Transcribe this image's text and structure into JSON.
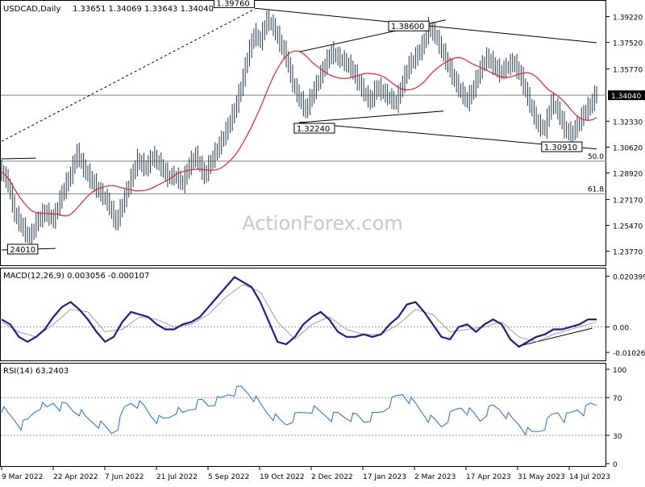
{
  "chart_data": {
    "type": "line",
    "symbol": "USDCAD,Daily",
    "ohlc_header": "1.33651 1.34069 1.33643 1.34040",
    "watermark": "ActionForex.com",
    "x_tick_labels": [
      "9 Mar 2022",
      "22 Apr 2022",
      "7 Jun 2022",
      "21 Jul 2022",
      "5 Sep 2022",
      "19 Oct 2022",
      "2 Dec 2022",
      "17 Jan 2023",
      "2 Mar 2023",
      "17 Apr 2023",
      "31 May 2023",
      "14 Jul 2023"
    ],
    "price_panel": {
      "ylim": [
        1.23,
        1.401
      ],
      "y_tick_labels": [
        {
          "v": 1.3922,
          "t": "1.39220"
        },
        {
          "v": 1.3752,
          "t": "1.37520"
        },
        {
          "v": 1.3577,
          "t": "1.35770"
        },
        {
          "v": 1.3233,
          "t": "1.32330"
        },
        {
          "v": 1.3062,
          "t": "1.30620"
        },
        {
          "v": 1.2892,
          "t": "1.28920"
        },
        {
          "v": 1.2717,
          "t": "1.27170"
        },
        {
          "v": 1.2547,
          "t": "1.25470"
        },
        {
          "v": 1.2377,
          "t": "1.23770"
        }
      ],
      "current_price_label": "1.34040",
      "current_price": 1.3404,
      "price_points": [
        [
          0,
          1.29
        ],
        [
          3,
          1.282
        ],
        [
          6,
          1.262
        ],
        [
          10,
          1.252
        ],
        [
          13,
          1.245
        ],
        [
          16,
          1.256
        ],
        [
          20,
          1.263
        ],
        [
          24,
          1.258
        ],
        [
          28,
          1.275
        ],
        [
          32,
          1.288
        ],
        [
          35,
          1.302
        ],
        [
          38,
          1.292
        ],
        [
          42,
          1.283
        ],
        [
          45,
          1.277
        ],
        [
          49,
          1.27
        ],
        [
          53,
          1.256
        ],
        [
          56,
          1.268
        ],
        [
          60,
          1.285
        ],
        [
          63,
          1.297
        ],
        [
          67,
          1.292
        ],
        [
          70,
          1.3
        ],
        [
          74,
          1.293
        ],
        [
          77,
          1.286
        ],
        [
          80,
          1.287
        ],
        [
          84,
          1.282
        ],
        [
          87,
          1.294
        ],
        [
          90,
          1.3
        ],
        [
          94,
          1.287
        ],
        [
          97,
          1.296
        ],
        [
          101,
          1.307
        ],
        [
          104,
          1.316
        ],
        [
          108,
          1.33
        ],
        [
          111,
          1.345
        ],
        [
          114,
          1.365
        ],
        [
          117,
          1.38
        ],
        [
          120,
          1.376
        ],
        [
          123,
          1.39
        ],
        [
          126,
          1.385
        ],
        [
          129,
          1.375
        ],
        [
          132,
          1.365
        ],
        [
          135,
          1.348
        ],
        [
          138,
          1.338
        ],
        [
          141,
          1.33
        ],
        [
          144,
          1.34
        ],
        [
          147,
          1.35
        ],
        [
          150,
          1.36
        ],
        [
          153,
          1.368
        ],
        [
          156,
          1.365
        ],
        [
          159,
          1.362
        ],
        [
          162,
          1.358
        ],
        [
          165,
          1.35
        ],
        [
          168,
          1.342
        ],
        [
          171,
          1.336
        ],
        [
          174,
          1.345
        ],
        [
          177,
          1.342
        ],
        [
          180,
          1.338
        ],
        [
          183,
          1.335
        ],
        [
          186,
          1.348
        ],
        [
          189,
          1.36
        ],
        [
          192,
          1.365
        ],
        [
          195,
          1.372
        ],
        [
          198,
          1.384
        ],
        [
          201,
          1.38
        ],
        [
          204,
          1.37
        ],
        [
          207,
          1.36
        ],
        [
          210,
          1.35
        ],
        [
          213,
          1.342
        ],
        [
          216,
          1.336
        ],
        [
          219,
          1.345
        ],
        [
          222,
          1.357
        ],
        [
          225,
          1.365
        ],
        [
          228,
          1.36
        ],
        [
          231,
          1.355
        ],
        [
          234,
          1.358
        ],
        [
          237,
          1.362
        ],
        [
          240,
          1.355
        ],
        [
          243,
          1.343
        ],
        [
          246,
          1.33
        ],
        [
          249,
          1.32
        ],
        [
          252,
          1.318
        ],
        [
          255,
          1.335
        ],
        [
          258,
          1.33
        ],
        [
          261,
          1.318
        ],
        [
          264,
          1.314
        ],
        [
          267,
          1.32
        ],
        [
          270,
          1.328
        ],
        [
          273,
          1.333
        ],
        [
          276,
          1.342
        ]
      ],
      "sma_label": "",
      "trendlines": [
        {
          "x1": 0,
          "y1": 1.31,
          "x2": 118,
          "y2": 1.3976,
          "style": "dashed"
        },
        {
          "x1": 118,
          "y1": 1.3976,
          "x2": 276,
          "y2": 1.375,
          "style": "solid"
        },
        {
          "x1": 138,
          "y1": 1.3224,
          "x2": 276,
          "y2": 1.305,
          "style": "solid"
        },
        {
          "x1": 138,
          "y1": 1.3224,
          "x2": 205,
          "y2": 1.33,
          "style": "solid"
        },
        {
          "x1": 138,
          "y1": 1.369,
          "x2": 206,
          "y2": 1.39,
          "style": "solid"
        },
        {
          "x1": 0,
          "y1": 1.2985,
          "x2": 16,
          "y2": 1.299,
          "style": "solid"
        },
        {
          "x1": 0,
          "y1": 1.2385,
          "x2": 25,
          "y2": 1.2395,
          "style": "solid"
        }
      ],
      "levels": [
        {
          "v": 1.3404,
          "label": ""
        },
        {
          "v": 1.297,
          "label": "50.0"
        },
        {
          "v": 1.2755,
          "label": "61.8"
        }
      ],
      "annotations": [
        {
          "text": "1.39760",
          "x": 118,
          "v": 1.3976
        },
        {
          "text": "1.38600",
          "x": 196,
          "v": 1.386
        },
        {
          "text": "1.32240",
          "x": 138,
          "v": 1.3224
        },
        {
          "text": "1.30910",
          "x": 252,
          "v": 1.3091
        },
        {
          "text": "24010",
          "x": 5,
          "v": 1.2401
        }
      ]
    },
    "macd_panel": {
      "title": "MACD(12,26,9) 0.003056 -0.000107",
      "ylim": [
        -0.0125,
        0.0225
      ],
      "y_tick_labels": [
        {
          "v": 0.020399,
          "t": "0.020399"
        },
        {
          "v": 0.0,
          "t": "0.00"
        },
        {
          "v": -0.01026,
          "t": "-0.01026"
        }
      ],
      "current_label": "0.00",
      "macd_points": [
        [
          0,
          0.003
        ],
        [
          4,
          0.001
        ],
        [
          8,
          -0.004
        ],
        [
          12,
          -0.006
        ],
        [
          16,
          -0.004
        ],
        [
          20,
          -0.001
        ],
        [
          24,
          0.004
        ],
        [
          28,
          0.008
        ],
        [
          32,
          0.01
        ],
        [
          36,
          0.007
        ],
        [
          40,
          0.003
        ],
        [
          44,
          -0.002
        ],
        [
          48,
          -0.006
        ],
        [
          52,
          -0.004
        ],
        [
          56,
          0.002
        ],
        [
          60,
          0.006
        ],
        [
          64,
          0.005
        ],
        [
          68,
          0.004
        ],
        [
          72,
          0.001
        ],
        [
          76,
          -0.001
        ],
        [
          80,
          -0.001
        ],
        [
          84,
          0.001
        ],
        [
          88,
          0.002
        ],
        [
          92,
          0.004
        ],
        [
          96,
          0.008
        ],
        [
          100,
          0.012
        ],
        [
          104,
          0.016
        ],
        [
          108,
          0.02
        ],
        [
          112,
          0.018
        ],
        [
          116,
          0.016
        ],
        [
          120,
          0.01
        ],
        [
          124,
          0.002
        ],
        [
          128,
          -0.006
        ],
        [
          132,
          -0.007
        ],
        [
          136,
          -0.004
        ],
        [
          140,
          0.001
        ],
        [
          144,
          0.004
        ],
        [
          148,
          0.006
        ],
        [
          152,
          0.003
        ],
        [
          156,
          -0.002
        ],
        [
          160,
          -0.004
        ],
        [
          164,
          -0.004
        ],
        [
          168,
          -0.003
        ],
        [
          172,
          -0.004
        ],
        [
          176,
          -0.003
        ],
        [
          180,
          0.001
        ],
        [
          184,
          0.004
        ],
        [
          188,
          0.009
        ],
        [
          192,
          0.01
        ],
        [
          196,
          0.006
        ],
        [
          200,
          0.001
        ],
        [
          204,
          -0.004
        ],
        [
          208,
          -0.005
        ],
        [
          212,
          0.0
        ],
        [
          216,
          0.001
        ],
        [
          220,
          -0.002
        ],
        [
          224,
          0.001
        ],
        [
          228,
          0.003
        ],
        [
          232,
          0.001
        ],
        [
          236,
          -0.005
        ],
        [
          240,
          -0.008
        ],
        [
          244,
          -0.006
        ],
        [
          248,
          -0.004
        ],
        [
          252,
          -0.003
        ],
        [
          256,
          -0.001
        ],
        [
          260,
          -0.001
        ],
        [
          264,
          0.0
        ],
        [
          268,
          0.001
        ],
        [
          272,
          0.003
        ],
        [
          276,
          0.003
        ]
      ],
      "signal_points": [
        [
          0,
          0.002
        ],
        [
          8,
          -0.002
        ],
        [
          16,
          -0.004
        ],
        [
          24,
          0.001
        ],
        [
          32,
          0.007
        ],
        [
          40,
          0.006
        ],
        [
          48,
          -0.002
        ],
        [
          56,
          -0.001
        ],
        [
          64,
          0.004
        ],
        [
          72,
          0.003
        ],
        [
          80,
          0.0
        ],
        [
          88,
          0.001
        ],
        [
          96,
          0.005
        ],
        [
          104,
          0.012
        ],
        [
          112,
          0.017
        ],
        [
          120,
          0.014
        ],
        [
          128,
          0.002
        ],
        [
          136,
          -0.005
        ],
        [
          144,
          0.001
        ],
        [
          152,
          0.004
        ],
        [
          160,
          -0.001
        ],
        [
          168,
          -0.003
        ],
        [
          176,
          -0.003
        ],
        [
          184,
          0.001
        ],
        [
          192,
          0.007
        ],
        [
          200,
          0.005
        ],
        [
          208,
          -0.002
        ],
        [
          216,
          -0.001
        ],
        [
          224,
          0.0
        ],
        [
          232,
          0.002
        ],
        [
          240,
          -0.004
        ],
        [
          248,
          -0.006
        ],
        [
          256,
          -0.003
        ],
        [
          264,
          -0.001
        ],
        [
          272,
          0.001
        ],
        [
          276,
          0.002
        ]
      ],
      "trendline": {
        "x1": 241,
        "y1": -0.0075,
        "x2": 274,
        "y2": -0.0005
      }
    },
    "rsi_panel": {
      "title": "RSI(14) 63.2403",
      "ylim": [
        0,
        100
      ],
      "y_tick_labels": [
        {
          "v": 100,
          "t": "100"
        },
        {
          "v": 70,
          "t": "70"
        },
        {
          "v": 30,
          "t": "30"
        },
        {
          "v": 0,
          "t": "0"
        }
      ],
      "levels": [
        70,
        30
      ],
      "rsi_points": [
        [
          0,
          58
        ],
        [
          3,
          52
        ],
        [
          6,
          47
        ],
        [
          9,
          40
        ],
        [
          12,
          45
        ],
        [
          15,
          55
        ],
        [
          18,
          62
        ],
        [
          21,
          58
        ],
        [
          24,
          65
        ],
        [
          27,
          60
        ],
        [
          30,
          62
        ],
        [
          33,
          57
        ],
        [
          36,
          55
        ],
        [
          39,
          48
        ],
        [
          42,
          45
        ],
        [
          45,
          42
        ],
        [
          48,
          38
        ],
        [
          51,
          33
        ],
        [
          54,
          40
        ],
        [
          57,
          58
        ],
        [
          60,
          65
        ],
        [
          63,
          63
        ],
        [
          66,
          60
        ],
        [
          69,
          52
        ],
        [
          72,
          47
        ],
        [
          75,
          46
        ],
        [
          78,
          50
        ],
        [
          81,
          57
        ],
        [
          84,
          52
        ],
        [
          87,
          58
        ],
        [
          90,
          62
        ],
        [
          93,
          66
        ],
        [
          96,
          62
        ],
        [
          99,
          66
        ],
        [
          102,
          68
        ],
        [
          105,
          74
        ],
        [
          108,
          76
        ],
        [
          111,
          80
        ],
        [
          114,
          76
        ],
        [
          117,
          70
        ],
        [
          120,
          62
        ],
        [
          123,
          55
        ],
        [
          126,
          50
        ],
        [
          129,
          45
        ],
        [
          132,
          42
        ],
        [
          135,
          48
        ],
        [
          138,
          52
        ],
        [
          141,
          55
        ],
        [
          144,
          58
        ],
        [
          147,
          55
        ],
        [
          150,
          52
        ],
        [
          153,
          49
        ],
        [
          156,
          52
        ],
        [
          159,
          50
        ],
        [
          162,
          49
        ],
        [
          165,
          50
        ],
        [
          168,
          45
        ],
        [
          171,
          49
        ],
        [
          174,
          52
        ],
        [
          177,
          56
        ],
        [
          180,
          64
        ],
        [
          183,
          70
        ],
        [
          186,
          74
        ],
        [
          189,
          68
        ],
        [
          192,
          62
        ],
        [
          195,
          55
        ],
        [
          198,
          48
        ],
        [
          201,
          45
        ],
        [
          204,
          40
        ],
        [
          207,
          48
        ],
        [
          210,
          55
        ],
        [
          213,
          60
        ],
        [
          216,
          56
        ],
        [
          219,
          52
        ],
        [
          222,
          46
        ],
        [
          225,
          55
        ],
        [
          228,
          60
        ],
        [
          231,
          58
        ],
        [
          234,
          52
        ],
        [
          237,
          46
        ],
        [
          240,
          42
        ],
        [
          243,
          35
        ],
        [
          246,
          32
        ],
        [
          249,
          35
        ],
        [
          252,
          40
        ],
        [
          255,
          50
        ],
        [
          258,
          55
        ],
        [
          261,
          48
        ],
        [
          264,
          52
        ],
        [
          267,
          58
        ],
        [
          270,
          55
        ],
        [
          273,
          62
        ],
        [
          276,
          63
        ]
      ]
    }
  }
}
